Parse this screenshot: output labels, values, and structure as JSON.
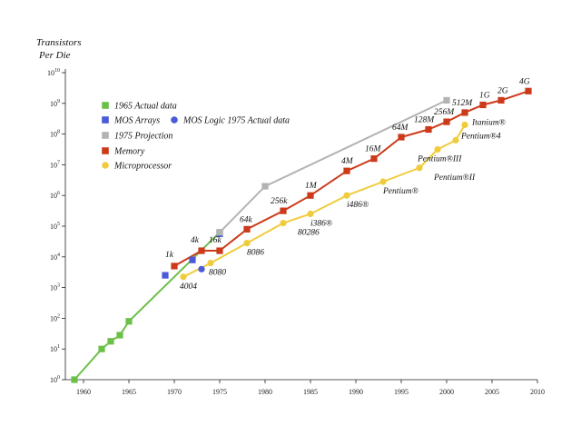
{
  "chart_data": {
    "type": "line",
    "title": "",
    "ylabel_line1": "Transistors",
    "ylabel_line2": "Per Die",
    "xlabel": "",
    "yscale": "log",
    "xlim": [
      1958,
      2010
    ],
    "ylim_exp": [
      0,
      10
    ],
    "x_ticks": [
      "1960",
      "1965",
      "1970",
      "1975",
      "1980",
      "1985",
      "1990",
      "1995",
      "2000",
      "2005",
      "2010"
    ],
    "x_tick_values": [
      1960,
      1965,
      1970,
      1975,
      1980,
      1985,
      1990,
      1995,
      2000,
      2005,
      2010
    ],
    "y_tick_base": "10",
    "y_tick_exponents": [
      "0",
      "1",
      "2",
      "3",
      "4",
      "5",
      "6",
      "7",
      "8",
      "9",
      "10"
    ],
    "legend": [
      {
        "label": "1965 Actual data",
        "color": "#6cc04a",
        "marker": "square"
      },
      {
        "label": "MOS Arrays",
        "color": "#4a5ad8",
        "marker": "square"
      },
      {
        "label": "MOS Logic 1975 Actual data",
        "color": "#4a5ad8",
        "marker": "circle"
      },
      {
        "label": "1975 Projection",
        "color": "#b3b3b3",
        "marker": "square"
      },
      {
        "label": "Memory",
        "color": "#cc3a1a",
        "marker": "square"
      },
      {
        "label": "Microprocessor",
        "color": "#f0cc3c",
        "marker": "circle"
      }
    ],
    "series": [
      {
        "name": "1965 Actual data",
        "color": "#6cc04a",
        "marker": "square",
        "line": true,
        "points": [
          [
            1959,
            0
          ],
          [
            1962,
            1
          ],
          [
            1963,
            1.25
          ],
          [
            1964,
            1.45
          ],
          [
            1965,
            1.9
          ],
          [
            1975,
            4.8
          ]
        ]
      },
      {
        "name": "MOS Arrays",
        "color": "#4a5ad8",
        "marker": "square",
        "line": false,
        "points": [
          [
            1969,
            3.4
          ],
          [
            1972,
            3.9
          ],
          [
            1975,
            4.75
          ]
        ]
      },
      {
        "name": "MOS Logic 1975 Actual data",
        "color": "#4a5ad8",
        "marker": "circle",
        "line": false,
        "points": [
          [
            1973,
            3.6
          ]
        ]
      },
      {
        "name": "1975 Projection",
        "color": "#b3b3b3",
        "marker": "square",
        "line": true,
        "points": [
          [
            1975,
            4.8
          ],
          [
            1980,
            6.3
          ],
          [
            2000,
            9.1
          ]
        ]
      },
      {
        "name": "Memory",
        "color": "#cc3a1a",
        "marker": "square",
        "line": true,
        "points": [
          [
            1970,
            3.7
          ],
          [
            1973,
            4.2
          ],
          [
            1975,
            4.2
          ],
          [
            1978,
            4.9
          ],
          [
            1982,
            5.5
          ],
          [
            1985,
            6.0
          ],
          [
            1989,
            6.8
          ],
          [
            1992,
            7.2
          ],
          [
            1995,
            7.9
          ],
          [
            1998,
            8.15
          ],
          [
            2000,
            8.4
          ],
          [
            2002,
            8.7
          ],
          [
            2004,
            8.95
          ],
          [
            2006,
            9.1
          ],
          [
            2009,
            9.4
          ]
        ]
      },
      {
        "name": "Microprocessor",
        "color": "#f0cc3c",
        "marker": "circle",
        "line": true,
        "points": [
          [
            1971,
            3.35
          ],
          [
            1974,
            3.8
          ],
          [
            1978,
            4.45
          ],
          [
            1982,
            5.1
          ],
          [
            1985,
            5.4
          ],
          [
            1989,
            6.0
          ],
          [
            1993,
            6.45
          ],
          [
            1997,
            6.9
          ],
          [
            1999,
            7.5
          ],
          [
            2001,
            7.8
          ],
          [
            2002,
            8.3
          ]
        ]
      }
    ],
    "annotations": [
      {
        "text": "1k",
        "x": 1970,
        "y": 3.7
      },
      {
        "text": "4k",
        "x": 1973,
        "y": 4.2
      },
      {
        "text": "16k",
        "x": 1975,
        "y": 4.2
      },
      {
        "text": "64k",
        "x": 1978,
        "y": 4.9
      },
      {
        "text": "256k",
        "x": 1982,
        "y": 5.5
      },
      {
        "text": "1M",
        "x": 1985,
        "y": 6.0
      },
      {
        "text": "4M",
        "x": 1989,
        "y": 6.8
      },
      {
        "text": "16M",
        "x": 1992,
        "y": 7.2
      },
      {
        "text": "64M",
        "x": 1995,
        "y": 7.9
      },
      {
        "text": "128M",
        "x": 1998,
        "y": 8.15
      },
      {
        "text": "256M",
        "x": 2000,
        "y": 8.4
      },
      {
        "text": "512M",
        "x": 2002,
        "y": 8.7
      },
      {
        "text": "1G",
        "x": 2004,
        "y": 8.95
      },
      {
        "text": "2G",
        "x": 2006,
        "y": 9.1
      },
      {
        "text": "4G",
        "x": 2009,
        "y": 9.4
      },
      {
        "text": "4004",
        "x": 1971,
        "y": 3.35
      },
      {
        "text": "8080",
        "x": 1974,
        "y": 3.8
      },
      {
        "text": "8086",
        "x": 1978,
        "y": 4.45
      },
      {
        "text": "80286",
        "x": 1982,
        "y": 5.1
      },
      {
        "text": "i386®",
        "x": 1985,
        "y": 5.4
      },
      {
        "text": "i486®",
        "x": 1989,
        "y": 6.0
      },
      {
        "text": "Pentium®",
        "x": 1993,
        "y": 6.45
      },
      {
        "text": "Pentium®II",
        "x": 1997,
        "y": 6.9
      },
      {
        "text": "Pentium®III",
        "x": 1999,
        "y": 7.5
      },
      {
        "text": "Pentium®4",
        "x": 2001,
        "y": 7.8
      },
      {
        "text": "Itanium®",
        "x": 2002,
        "y": 8.3
      }
    ]
  }
}
